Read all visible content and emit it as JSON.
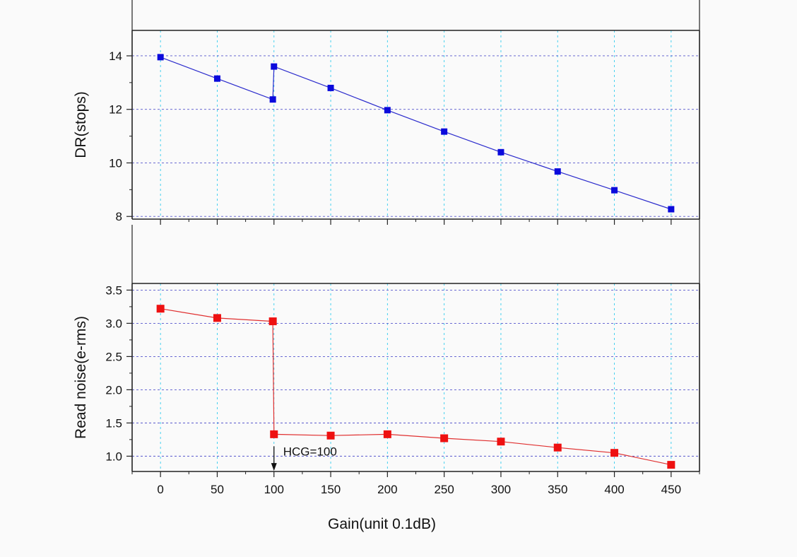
{
  "chart_data": {
    "type": "line",
    "shared_x": {
      "label": "Gain(unit 0.1dB)",
      "range": [
        -25,
        475
      ],
      "ticks": [
        0,
        50,
        100,
        150,
        200,
        250,
        300,
        350,
        400,
        450
      ],
      "tick_labels": [
        "0",
        "50",
        "100",
        "150",
        "200",
        "250",
        "300",
        "350",
        "400",
        "450"
      ]
    },
    "panels": [
      {
        "id": "dr",
        "ylabel": "DR(stops)",
        "ylim": [
          7.9,
          14.95
        ],
        "yticks": [
          8,
          10,
          12,
          14
        ],
        "ytick_labels": [
          "8",
          "10",
          "12",
          "14"
        ],
        "grid": true,
        "series": [
          {
            "name": "DR",
            "color": "#2a2acc",
            "marker_color": "#0a0adc",
            "marker": "square",
            "x": [
              0,
              50,
              99,
              100,
              150,
              200,
              250,
              300,
              350,
              400,
              450
            ],
            "y": [
              13.95,
              13.15,
              12.37,
              13.6,
              12.8,
              11.97,
              11.17,
              10.4,
              9.68,
              8.98,
              8.27
            ]
          }
        ]
      },
      {
        "id": "read-noise",
        "ylabel": "Read noise(e-rms)",
        "ylim": [
          0.77,
          3.6
        ],
        "yticks": [
          1.0,
          1.5,
          2.0,
          2.5,
          3.0,
          3.5
        ],
        "ytick_labels": [
          "1.0",
          "1.5",
          "2.0",
          "2.5",
          "3.0",
          "3.5"
        ],
        "grid": true,
        "series": [
          {
            "name": "Read noise",
            "color": "#e03030",
            "marker_color": "#ee1111",
            "marker": "square",
            "x": [
              0,
              50,
              99,
              100,
              150,
              200,
              250,
              300,
              350,
              400,
              450
            ],
            "y": [
              3.22,
              3.08,
              3.03,
              1.33,
              1.31,
              1.33,
              1.27,
              1.22,
              1.13,
              1.05,
              0.87
            ]
          }
        ],
        "annotations": [
          {
            "text": "HCG=100",
            "arrow_x": 100,
            "arrow_from_y": 1.15,
            "arrow_to_y": 0.8
          }
        ]
      }
    ]
  }
}
